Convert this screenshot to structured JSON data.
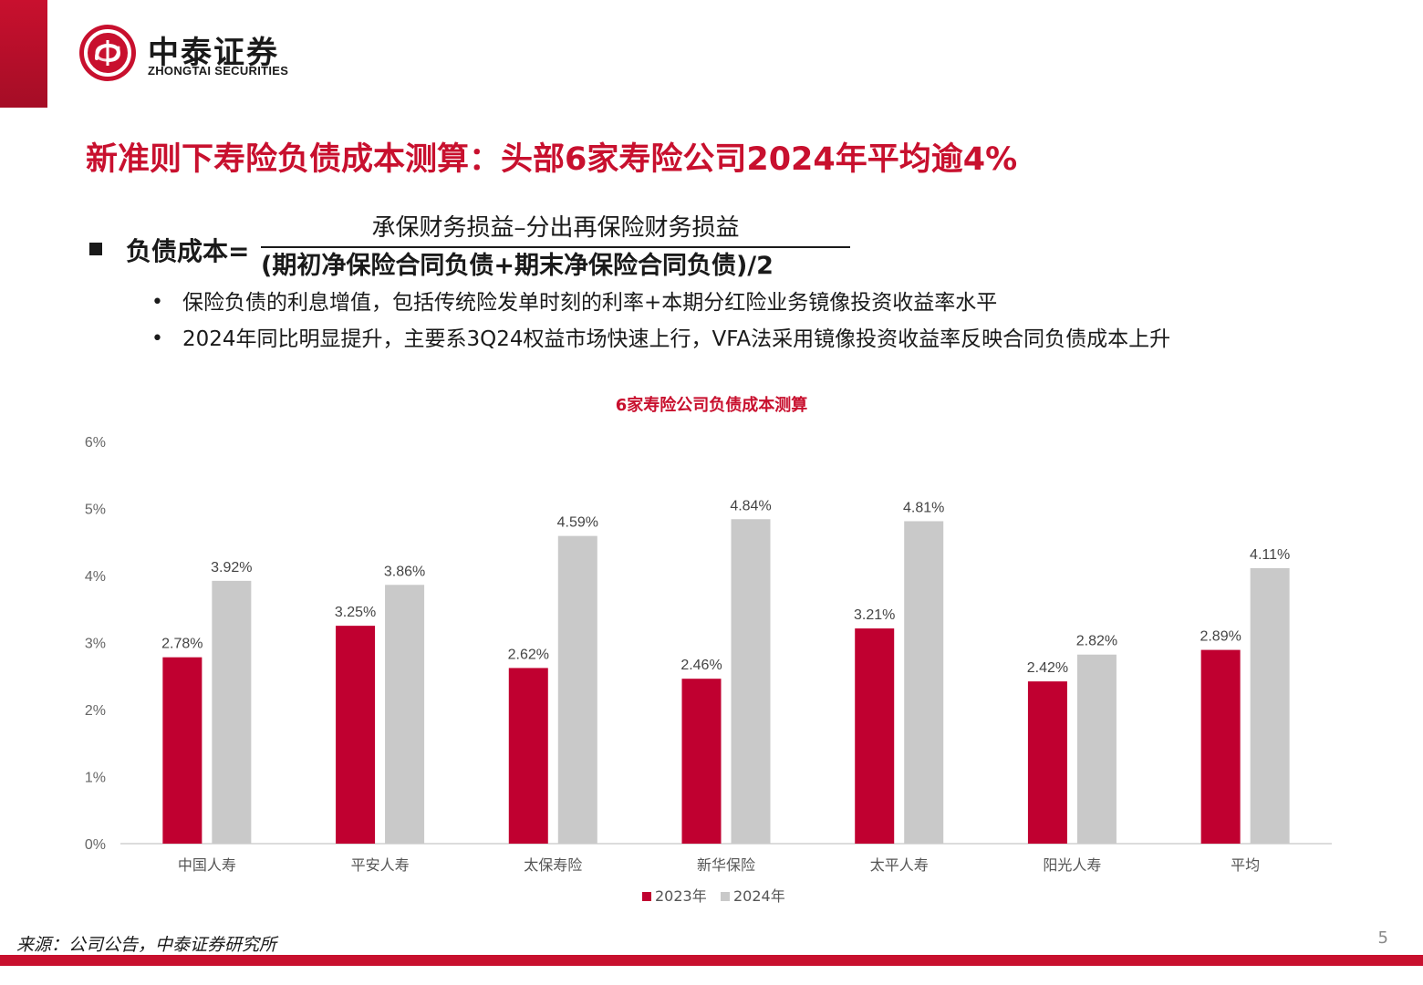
{
  "brand": {
    "name_cn": "中泰证券",
    "name_en": "ZHONGTAI SECURITIES",
    "color": "#c8102e"
  },
  "slide_title": "新准则下寿险负债成本测算：头部6家寿险公司2024年平均逾4%",
  "formula": {
    "label": "负债成本=",
    "numerator": "承保财务损益–分出再保险财务损益",
    "denominator": "(期初净保险合同负债+期末净保险合同负债)/2"
  },
  "bullets": [
    "保险负债的利息增值，包括传统险发单时刻的利率+本期分红险业务镜像投资收益率水平",
    "2024年同比明显提升，主要系3Q24权益市场快速上行，VFA法采用镜像投资收益率反映合同负债成本上升"
  ],
  "chart_data": {
    "type": "bar",
    "title": "6家寿险公司负债成本测算",
    "categories": [
      "中国人寿",
      "平安人寿",
      "太保寿险",
      "新华保险",
      "太平人寿",
      "阳光人寿",
      "平均"
    ],
    "series": [
      {
        "name": "2023年",
        "color": "#c00030",
        "values": [
          2.78,
          3.25,
          2.62,
          2.46,
          3.21,
          2.42,
          2.89
        ],
        "labels": [
          "2.78%",
          "3.25%",
          "2.62%",
          "2.46%",
          "3.21%",
          "2.42%",
          "2.89%"
        ]
      },
      {
        "name": "2024年",
        "color": "#c9c9c9",
        "values": [
          3.92,
          3.86,
          4.59,
          4.84,
          4.81,
          2.82,
          4.11
        ],
        "labels": [
          "3.92%",
          "3.86%",
          "4.59%",
          "4.84%",
          "4.81%",
          "2.82%",
          "4.11%"
        ]
      }
    ],
    "yticks": [
      "0%",
      "1%",
      "2%",
      "3%",
      "4%",
      "5%",
      "6%"
    ],
    "ylim": [
      0,
      6
    ],
    "legend_position": "bottom-center",
    "grid": false
  },
  "source": "来源：公司公告，中泰证券研究所",
  "page_number": "5"
}
